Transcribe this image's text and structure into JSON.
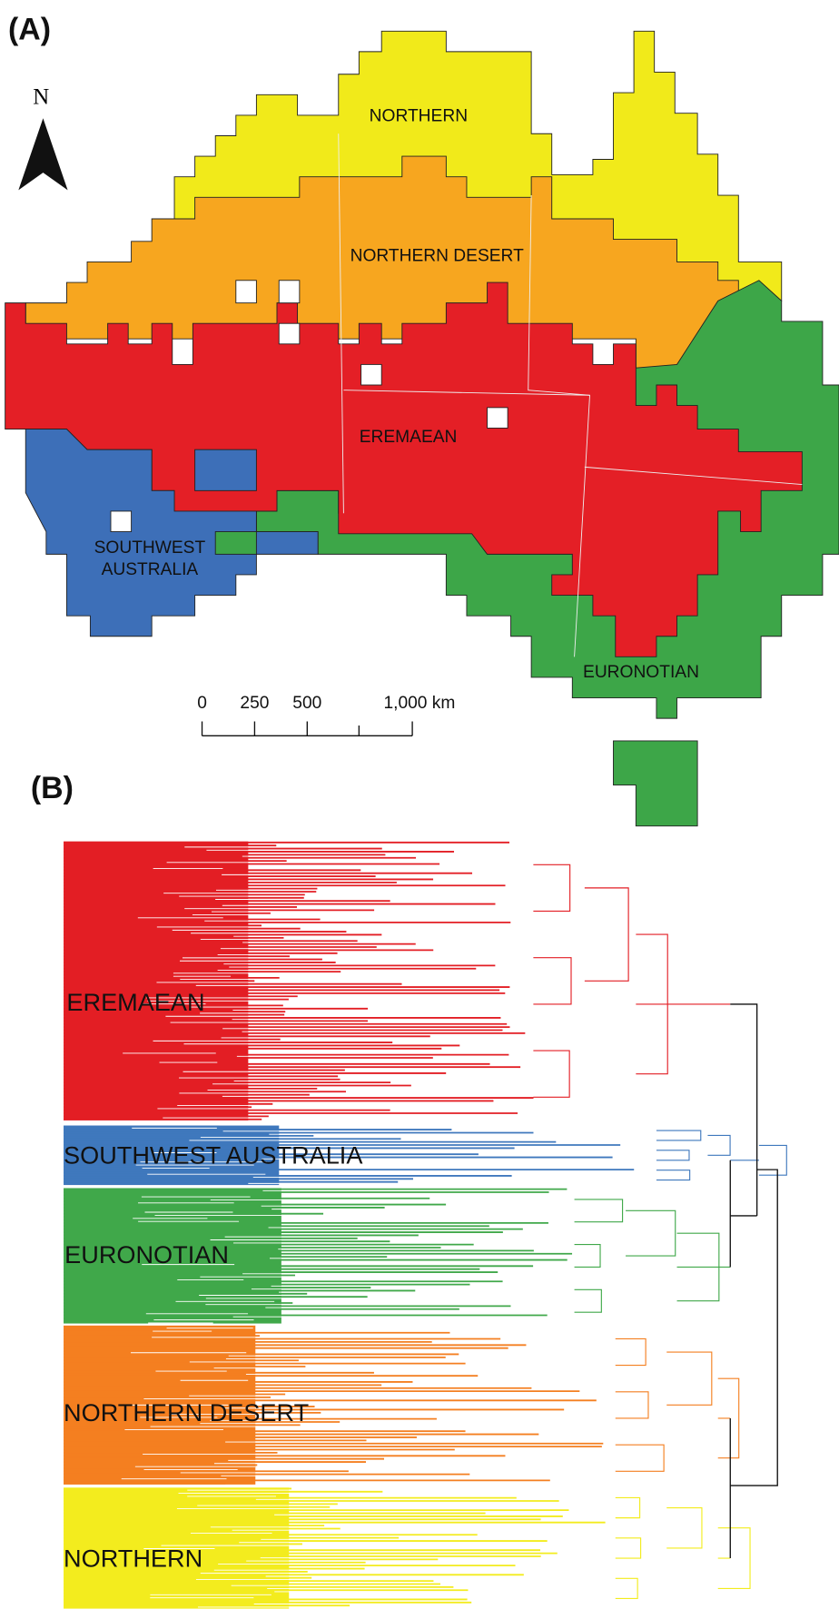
{
  "panel_a": {
    "label": "(A)",
    "north": "N",
    "regions": [
      {
        "name": "NORTHERN",
        "color": "#f1ea1a"
      },
      {
        "name": "NORTHERN DESERT",
        "color": "#f7a61f"
      },
      {
        "name": "EREMAEAN",
        "color": "#e41f26"
      },
      {
        "label_lines": [
          "SOUTHWEST",
          "AUSTRALIA"
        ],
        "color": "#3d6fb8"
      },
      {
        "name": "EURONOTIAN",
        "color": "#3da648"
      }
    ],
    "scale_bar": {
      "ticks": [
        0,
        250,
        500,
        {
          "value": 1000,
          "label": "1,000 km"
        }
      ]
    }
  },
  "panel_b": {
    "label": "(B)",
    "clades": [
      {
        "name": "EREMAEAN",
        "color": "#e31e24"
      },
      {
        "name": "SOUTHWEST AUSTRALIA",
        "color": "#3f78bd"
      },
      {
        "name": "EURONOTIAN",
        "color": "#40a84a"
      },
      {
        "name": "NORTHERN DESERT",
        "color": "#f47f20"
      },
      {
        "name": "NORTHERN",
        "color": "#f3ec1e"
      }
    ]
  }
}
